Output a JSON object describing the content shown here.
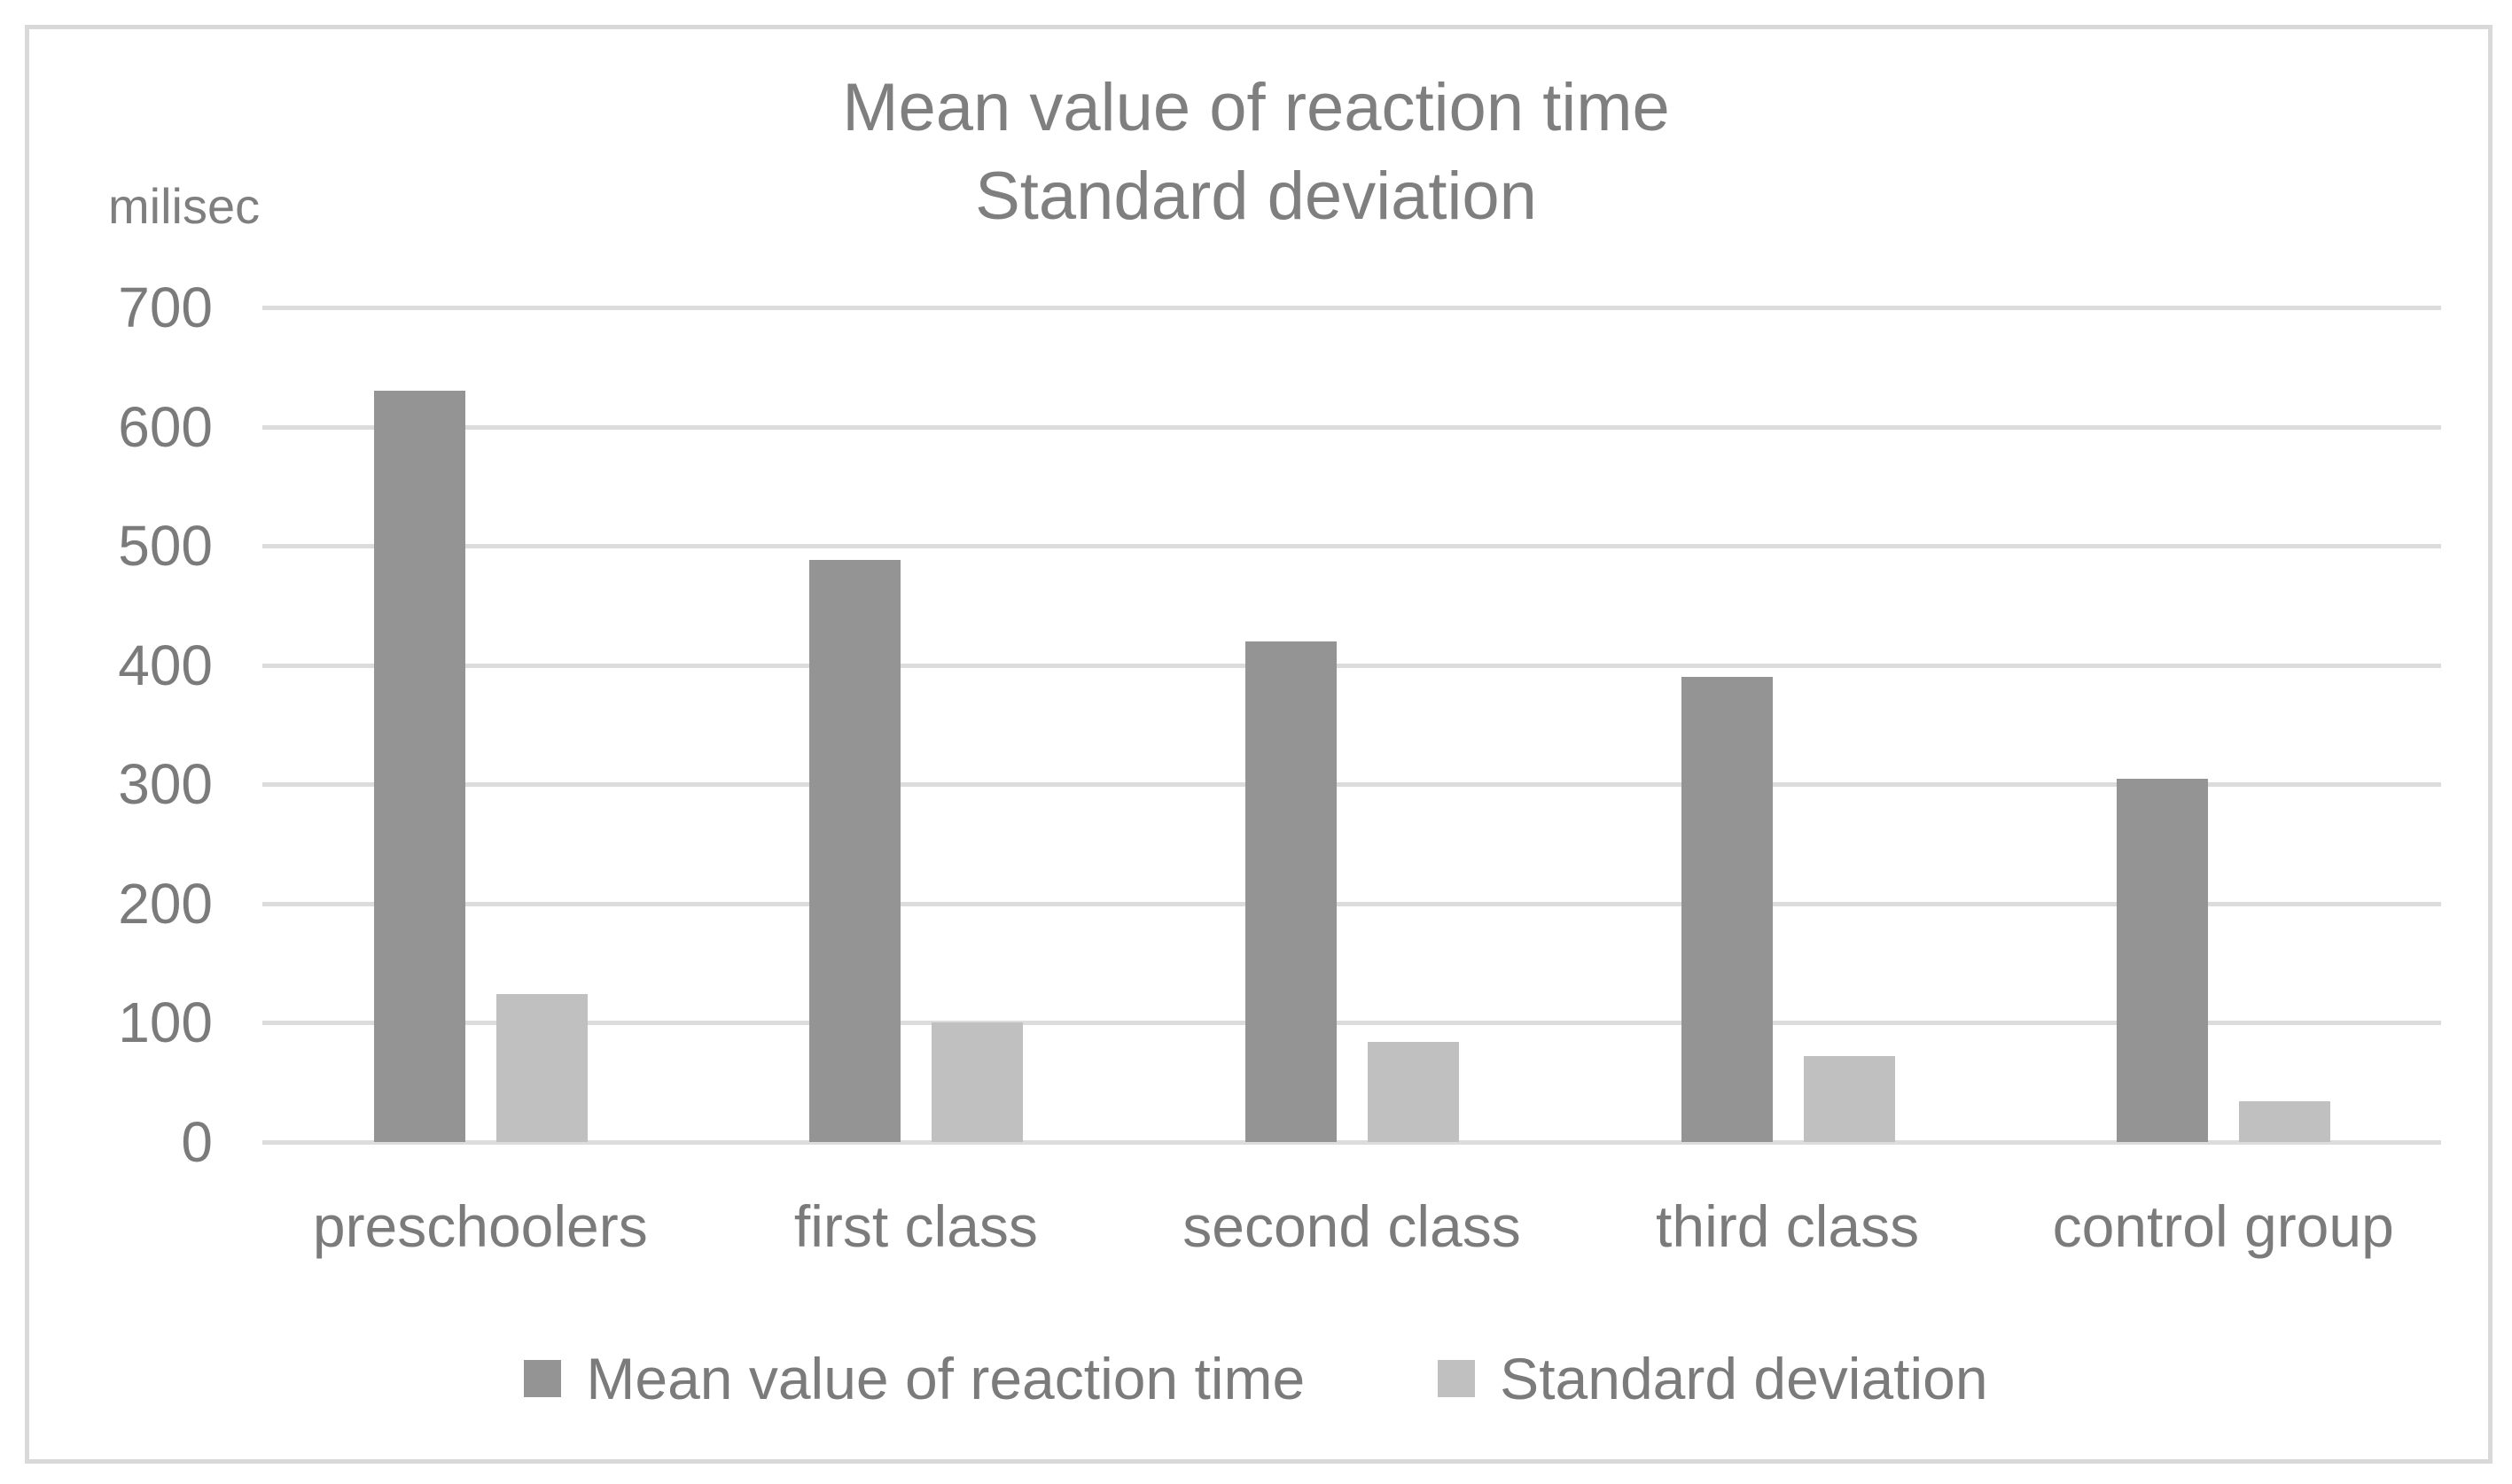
{
  "chart_data": {
    "type": "bar",
    "title_lines": [
      "Mean value of reaction time",
      "Standard deviation"
    ],
    "y_axis_label": "milisec",
    "categories": [
      "preschoolers",
      "first class",
      "second class",
      "third class",
      "control group"
    ],
    "series": [
      {
        "name": "Mean value of reaction time",
        "color": "#949494",
        "values": [
          630,
          488,
          420,
          390,
          305
        ]
      },
      {
        "name": "Standard deviation",
        "color": "#c0c0c0",
        "values": [
          124,
          100,
          84,
          72,
          34
        ]
      }
    ],
    "y_ticks": [
      0,
      100,
      200,
      300,
      400,
      500,
      600,
      700
    ],
    "ylim": [
      0,
      700
    ],
    "grid": true,
    "legend_position": "bottom",
    "colors": {
      "text": "#7f7f7f",
      "axis_text": "#7b7b7b",
      "gridline": "#dcdcdc",
      "frame_border": "#d9d9d9",
      "background": "#ffffff"
    }
  }
}
